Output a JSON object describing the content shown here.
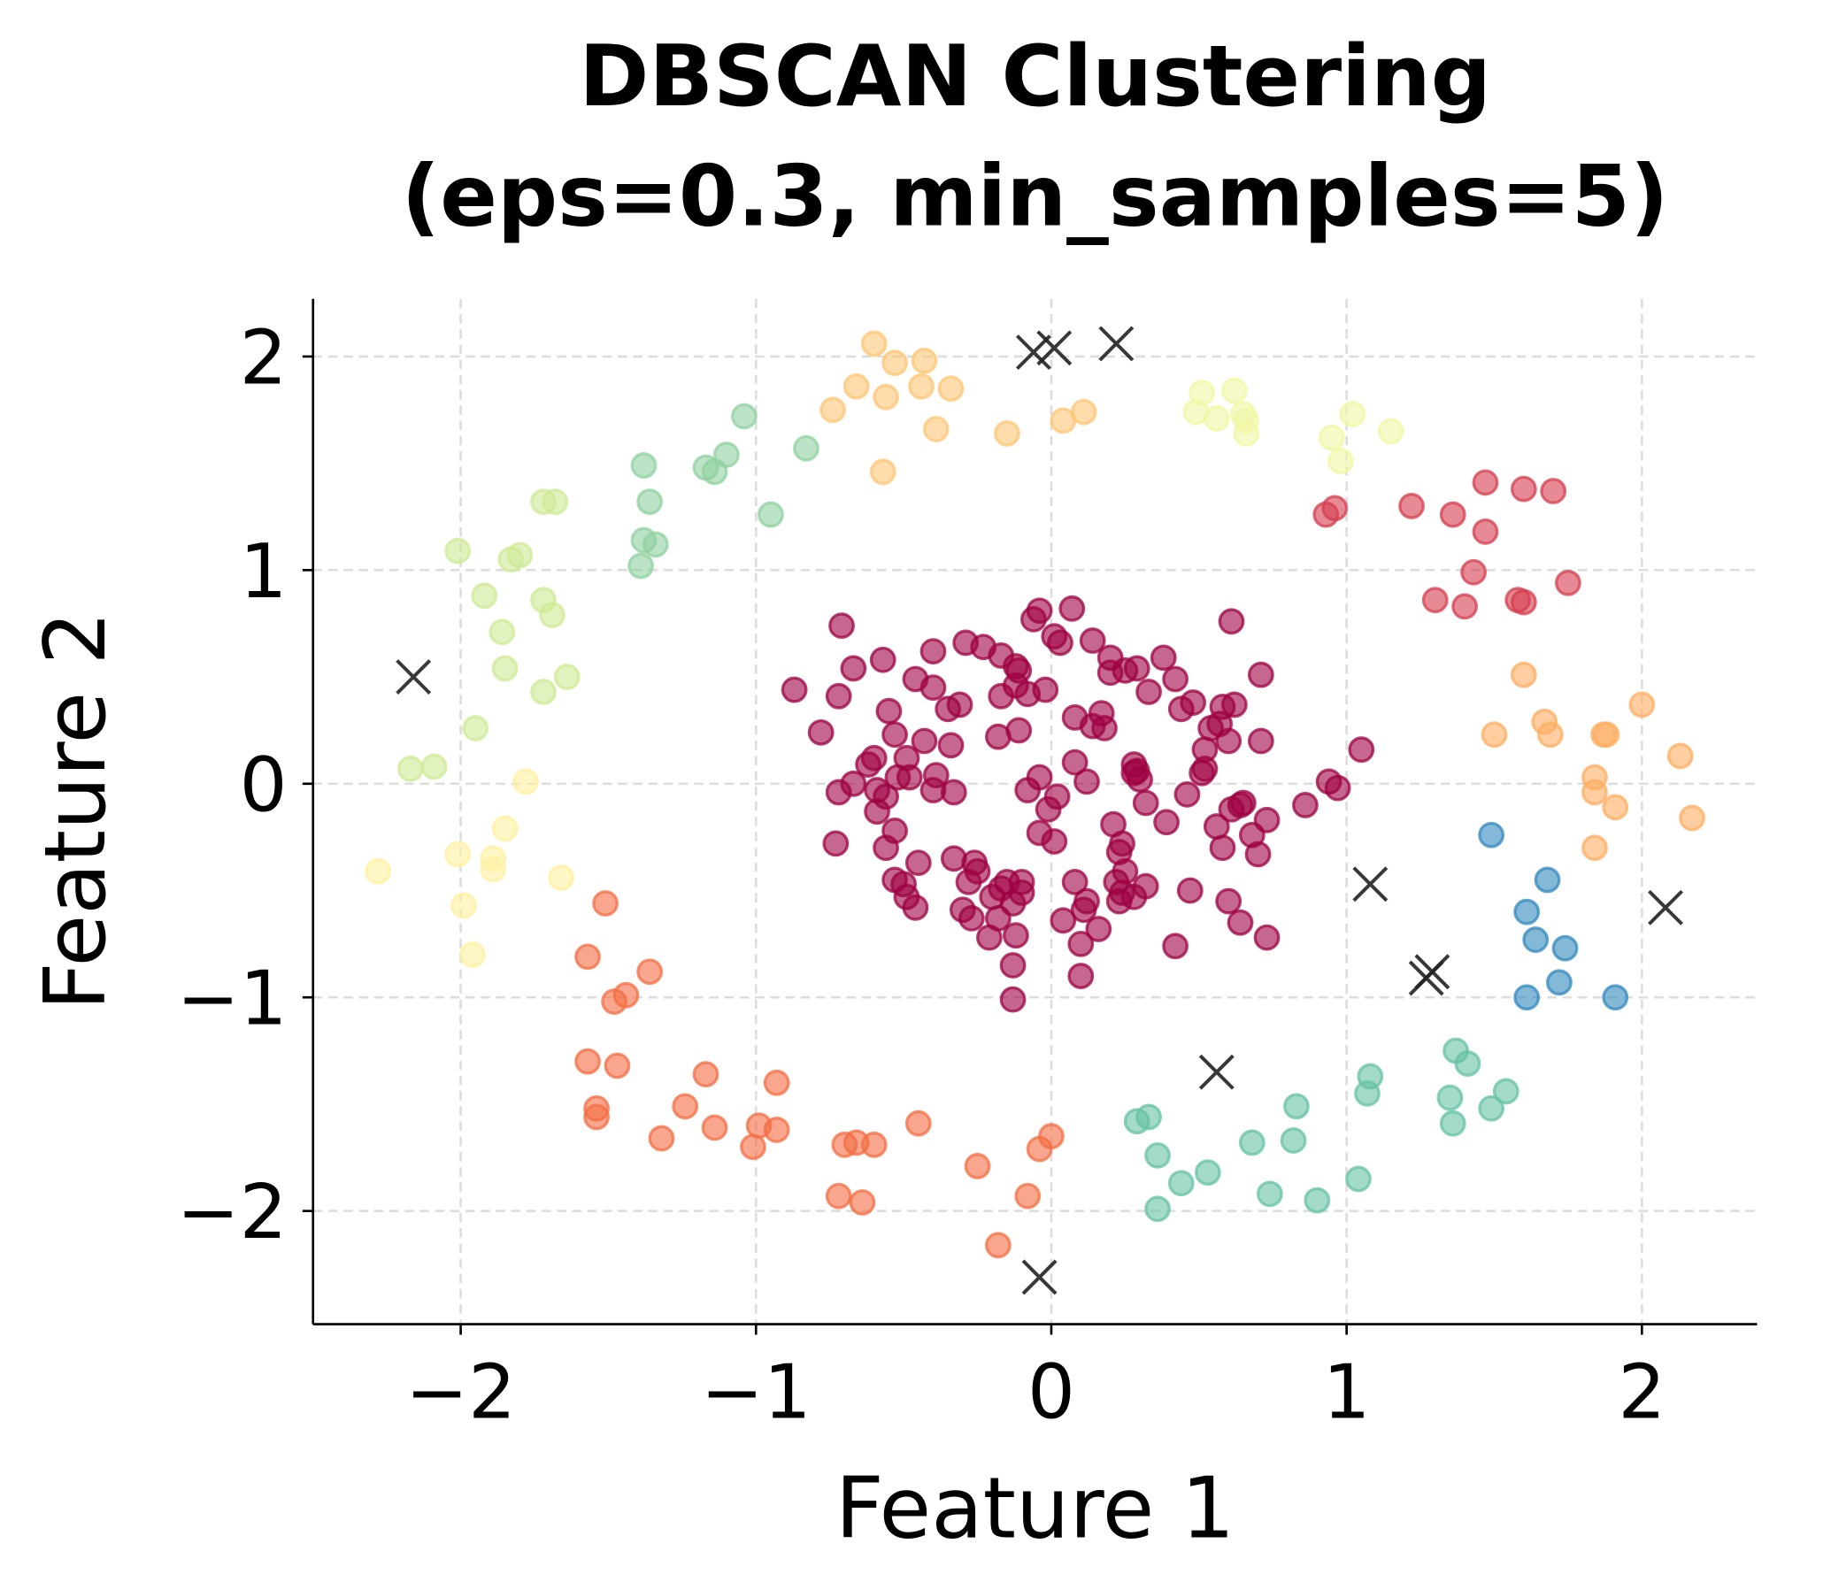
{
  "chart_data": {
    "type": "scatter",
    "title_line1": "DBSCAN Clustering",
    "title_line2": "(eps=0.3, min_samples=5)",
    "xlabel": "Feature 1",
    "ylabel": "Feature 2",
    "xlim": [
      -2.5,
      2.39
    ],
    "ylim": [
      -2.53,
      2.27
    ],
    "xticks": [
      -2,
      -1,
      0,
      1,
      2
    ],
    "yticks": [
      -2,
      -1,
      0,
      1,
      2
    ],
    "xtick_labels": [
      "−2",
      "−1",
      "0",
      "1",
      "2"
    ],
    "ytick_labels": [
      "−2",
      "−1",
      "0",
      "1",
      "2"
    ],
    "grid": true,
    "colormap": "Spectral",
    "marker_alpha": 0.6,
    "clusters": [
      {
        "color": "#9e0142",
        "points": [
          [
            -0.71,
            0.74
          ],
          [
            -0.67,
            0.54
          ],
          [
            -0.87,
            0.44
          ],
          [
            -0.72,
            0.41
          ],
          [
            -0.78,
            0.24
          ],
          [
            -0.57,
            0.58
          ],
          [
            -0.46,
            0.49
          ],
          [
            -0.4,
            0.62
          ],
          [
            -0.4,
            0.45
          ],
          [
            -0.55,
            0.34
          ],
          [
            -0.53,
            0.23
          ],
          [
            -0.43,
            0.2
          ],
          [
            -0.34,
            0.18
          ],
          [
            -0.35,
            0.35
          ],
          [
            -0.31,
            0.37
          ],
          [
            -0.29,
            0.66
          ],
          [
            -0.23,
            0.64
          ],
          [
            -0.17,
            0.6
          ],
          [
            -0.12,
            0.55
          ],
          [
            -0.11,
            0.53
          ],
          [
            -0.06,
            0.77
          ],
          [
            -0.04,
            0.81
          ],
          [
            0.01,
            0.69
          ],
          [
            0.03,
            0.66
          ],
          [
            0.07,
            0.82
          ],
          [
            0.14,
            0.67
          ],
          [
            0.2,
            0.59
          ],
          [
            0.2,
            0.52
          ],
          [
            0.25,
            0.53
          ],
          [
            0.29,
            0.54
          ],
          [
            0.33,
            0.43
          ],
          [
            0.38,
            0.59
          ],
          [
            0.42,
            0.49
          ],
          [
            0.44,
            0.35
          ],
          [
            0.48,
            0.38
          ],
          [
            0.61,
            0.76
          ],
          [
            0.58,
            0.36
          ],
          [
            0.62,
            0.37
          ],
          [
            0.71,
            0.51
          ],
          [
            0.71,
            0.2
          ],
          [
            0.54,
            0.26
          ],
          [
            0.52,
            0.16
          ],
          [
            0.52,
            0.07
          ],
          [
            0.6,
            0.2
          ],
          [
            0.57,
            0.28
          ],
          [
            -0.12,
            0.46
          ],
          [
            -0.08,
            0.42
          ],
          [
            -0.02,
            0.44
          ],
          [
            -0.17,
            0.41
          ],
          [
            -0.11,
            0.25
          ],
          [
            -0.18,
            0.22
          ],
          [
            0.08,
            0.31
          ],
          [
            0.14,
            0.27
          ],
          [
            0.17,
            0.33
          ],
          [
            0.18,
            0.26
          ],
          [
            -0.04,
            0.03
          ],
          [
            -0.08,
            -0.03
          ],
          [
            0.02,
            -0.06
          ],
          [
            -0.01,
            -0.12
          ],
          [
            -0.04,
            -0.23
          ],
          [
            0.01,
            -0.27
          ],
          [
            0.08,
            0.1
          ],
          [
            0.12,
            0.01
          ],
          [
            0.28,
            0.09
          ],
          [
            0.29,
            0.06
          ],
          [
            0.28,
            0.05
          ],
          [
            0.3,
            0.02
          ],
          [
            0.32,
            -0.09
          ],
          [
            0.21,
            -0.19
          ],
          [
            0.24,
            -0.28
          ],
          [
            0.39,
            -0.18
          ],
          [
            0.46,
            -0.05
          ],
          [
            0.51,
            0.05
          ],
          [
            0.56,
            -0.2
          ],
          [
            0.58,
            -0.3
          ],
          [
            0.61,
            -0.12
          ],
          [
            0.64,
            -0.1
          ],
          [
            0.65,
            -0.09
          ],
          [
            0.68,
            -0.24
          ],
          [
            0.7,
            -0.33
          ],
          [
            0.73,
            -0.17
          ],
          [
            0.86,
            -0.1
          ],
          [
            0.94,
            0.01
          ],
          [
            0.97,
            -0.02
          ],
          [
            1.05,
            0.16
          ],
          [
            -0.73,
            -0.28
          ],
          [
            -0.72,
            -0.04
          ],
          [
            -0.67,
            0.0
          ],
          [
            -0.62,
            0.09
          ],
          [
            -0.6,
            0.12
          ],
          [
            -0.59,
            -0.03
          ],
          [
            -0.59,
            -0.13
          ],
          [
            -0.56,
            -0.06
          ],
          [
            -0.56,
            -0.3
          ],
          [
            -0.53,
            -0.22
          ],
          [
            -0.52,
            0.03
          ],
          [
            -0.49,
            0.12
          ],
          [
            -0.48,
            0.03
          ],
          [
            -0.39,
            0.04
          ],
          [
            -0.4,
            -0.03
          ],
          [
            -0.33,
            -0.04
          ],
          [
            -0.45,
            -0.37
          ],
          [
            -0.53,
            -0.45
          ],
          [
            -0.5,
            -0.47
          ],
          [
            -0.49,
            -0.53
          ],
          [
            -0.46,
            -0.58
          ],
          [
            -0.33,
            -0.35
          ],
          [
            -0.26,
            -0.37
          ],
          [
            -0.28,
            -0.46
          ],
          [
            -0.25,
            -0.41
          ],
          [
            -0.3,
            -0.59
          ],
          [
            -0.27,
            -0.63
          ],
          [
            -0.21,
            -0.72
          ],
          [
            -0.2,
            -0.53
          ],
          [
            -0.17,
            -0.49
          ],
          [
            -0.15,
            -0.46
          ],
          [
            -0.13,
            -0.56
          ],
          [
            -0.1,
            -0.51
          ],
          [
            -0.12,
            -0.71
          ],
          [
            -0.1,
            -0.46
          ],
          [
            -0.13,
            -0.85
          ],
          [
            -0.13,
            -1.01
          ],
          [
            -0.18,
            -0.63
          ],
          [
            0.08,
            -0.46
          ],
          [
            0.04,
            -0.64
          ],
          [
            0.12,
            -0.55
          ],
          [
            0.11,
            -0.59
          ],
          [
            0.1,
            -0.75
          ],
          [
            0.1,
            -0.9
          ],
          [
            0.16,
            -0.68
          ],
          [
            0.23,
            -0.32
          ],
          [
            0.25,
            -0.41
          ],
          [
            0.24,
            -0.51
          ],
          [
            0.22,
            -0.46
          ],
          [
            0.23,
            -0.55
          ],
          [
            0.28,
            -0.53
          ],
          [
            0.32,
            -0.48
          ],
          [
            0.42,
            -0.76
          ],
          [
            0.47,
            -0.5
          ],
          [
            0.6,
            -0.55
          ],
          [
            0.64,
            -0.65
          ],
          [
            0.73,
            -0.72
          ]
        ]
      },
      {
        "color": "#d53e4f",
        "points": [
          [
            0.93,
            1.26
          ],
          [
            0.96,
            1.29
          ],
          [
            1.22,
            1.3
          ],
          [
            1.36,
            1.26
          ],
          [
            1.47,
            1.41
          ],
          [
            1.6,
            1.38
          ],
          [
            1.7,
            1.37
          ],
          [
            1.47,
            1.18
          ],
          [
            1.43,
            0.99
          ],
          [
            1.3,
            0.86
          ],
          [
            1.4,
            0.83
          ],
          [
            1.58,
            0.86
          ],
          [
            1.6,
            0.85
          ],
          [
            1.75,
            0.94
          ]
        ]
      },
      {
        "color": "#f46d43",
        "points": [
          [
            -1.51,
            -0.56
          ],
          [
            -1.57,
            -0.81
          ],
          [
            -1.36,
            -0.88
          ],
          [
            -1.44,
            -0.99
          ],
          [
            -1.48,
            -1.02
          ],
          [
            -1.57,
            -1.3
          ],
          [
            -1.47,
            -1.32
          ],
          [
            -1.54,
            -1.52
          ],
          [
            -1.54,
            -1.56
          ],
          [
            -1.24,
            -1.51
          ],
          [
            -1.17,
            -1.36
          ],
          [
            -1.14,
            -1.61
          ],
          [
            -1.32,
            -1.66
          ],
          [
            -0.93,
            -1.4
          ],
          [
            -0.93,
            -1.62
          ],
          [
            -0.99,
            -1.6
          ],
          [
            -1.01,
            -1.7
          ],
          [
            -0.7,
            -1.69
          ],
          [
            -0.66,
            -1.68
          ],
          [
            -0.6,
            -1.69
          ],
          [
            -0.72,
            -1.93
          ],
          [
            -0.64,
            -1.96
          ],
          [
            -0.45,
            -1.59
          ],
          [
            -0.25,
            -1.79
          ],
          [
            0.0,
            -1.65
          ],
          [
            -0.04,
            -1.71
          ],
          [
            -0.08,
            -1.93
          ],
          [
            -0.18,
            -2.16
          ]
        ]
      },
      {
        "color": "#fdae61",
        "points": [
          [
            1.6,
            0.51
          ],
          [
            1.67,
            0.29
          ],
          [
            1.69,
            0.23
          ],
          [
            1.5,
            0.23
          ],
          [
            1.87,
            0.23
          ],
          [
            1.88,
            0.23
          ],
          [
            2.0,
            0.37
          ],
          [
            2.13,
            0.13
          ],
          [
            2.17,
            -0.16
          ],
          [
            1.84,
            0.03
          ],
          [
            1.84,
            -0.04
          ],
          [
            1.91,
            -0.11
          ],
          [
            1.84,
            -0.3
          ]
        ]
      },
      {
        "color": "#fdc574",
        "points": [
          [
            -0.6,
            2.06
          ],
          [
            -0.53,
            1.97
          ],
          [
            -0.43,
            1.98
          ],
          [
            -0.66,
            1.86
          ],
          [
            -0.56,
            1.81
          ],
          [
            -0.44,
            1.86
          ],
          [
            -0.34,
            1.85
          ],
          [
            -0.74,
            1.75
          ],
          [
            -0.39,
            1.66
          ],
          [
            -0.57,
            1.46
          ],
          [
            -0.15,
            1.64
          ],
          [
            0.04,
            1.7
          ],
          [
            0.11,
            1.74
          ]
        ]
      },
      {
        "color": "#f0f7a4",
        "points": [
          [
            0.51,
            1.83
          ],
          [
            0.62,
            1.84
          ],
          [
            0.49,
            1.74
          ],
          [
            0.56,
            1.71
          ],
          [
            0.65,
            1.73
          ],
          [
            0.66,
            1.7
          ],
          [
            0.66,
            1.64
          ],
          [
            1.02,
            1.73
          ],
          [
            1.15,
            1.65
          ],
          [
            0.95,
            1.62
          ],
          [
            0.98,
            1.51
          ]
        ]
      },
      {
        "color": "#fff0a0",
        "points": [
          [
            -1.78,
            0.01
          ],
          [
            -2.28,
            -0.41
          ],
          [
            -2.01,
            -0.33
          ],
          [
            -1.89,
            -0.35
          ],
          [
            -1.89,
            -0.4
          ],
          [
            -1.85,
            -0.21
          ],
          [
            -1.66,
            -0.44
          ],
          [
            -1.99,
            -0.57
          ],
          [
            -1.96,
            -0.8
          ]
        ]
      },
      {
        "color": "#cfea95",
        "points": [
          [
            -2.01,
            1.09
          ],
          [
            -1.72,
            1.32
          ],
          [
            -1.68,
            1.32
          ],
          [
            -1.83,
            1.05
          ],
          [
            -1.8,
            1.07
          ],
          [
            -1.92,
            0.88
          ],
          [
            -1.86,
            0.71
          ],
          [
            -1.72,
            0.86
          ],
          [
            -1.69,
            0.79
          ],
          [
            -1.85,
            0.54
          ],
          [
            -1.72,
            0.43
          ],
          [
            -1.64,
            0.5
          ],
          [
            -1.95,
            0.26
          ],
          [
            -2.17,
            0.07
          ],
          [
            -2.09,
            0.08
          ]
        ]
      },
      {
        "color": "#8fd1a0",
        "points": [
          [
            -1.04,
            1.72
          ],
          [
            -1.1,
            1.54
          ],
          [
            -1.17,
            1.48
          ],
          [
            -1.14,
            1.46
          ],
          [
            -0.83,
            1.57
          ],
          [
            -0.95,
            1.26
          ],
          [
            -1.38,
            1.49
          ],
          [
            -1.36,
            1.32
          ],
          [
            -1.38,
            1.14
          ],
          [
            -1.34,
            1.12
          ],
          [
            -1.39,
            1.02
          ]
        ]
      },
      {
        "color": "#66c2a5",
        "points": [
          [
            1.37,
            -1.25
          ],
          [
            1.41,
            -1.31
          ],
          [
            1.54,
            -1.44
          ],
          [
            1.49,
            -1.52
          ],
          [
            1.35,
            -1.47
          ],
          [
            1.36,
            -1.59
          ],
          [
            1.08,
            -1.37
          ],
          [
            1.07,
            -1.45
          ],
          [
            1.04,
            -1.85
          ],
          [
            0.83,
            -1.51
          ],
          [
            0.82,
            -1.67
          ],
          [
            0.68,
            -1.68
          ],
          [
            0.74,
            -1.92
          ],
          [
            0.9,
            -1.95
          ],
          [
            0.53,
            -1.82
          ],
          [
            0.44,
            -1.87
          ],
          [
            0.36,
            -1.74
          ],
          [
            0.33,
            -1.56
          ],
          [
            0.29,
            -1.58
          ],
          [
            0.36,
            -1.99
          ]
        ]
      },
      {
        "color": "#3288bd",
        "points": [
          [
            1.49,
            -0.24
          ],
          [
            1.68,
            -0.45
          ],
          [
            1.61,
            -0.6
          ],
          [
            1.64,
            -0.73
          ],
          [
            1.74,
            -0.77
          ],
          [
            1.72,
            -0.93
          ],
          [
            1.61,
            -1.0
          ],
          [
            1.91,
            -1.0
          ]
        ]
      }
    ],
    "noise": {
      "color": "#000000",
      "marker": "x",
      "points": [
        [
          -0.06,
          2.02
        ],
        [
          0.01,
          2.04
        ],
        [
          0.22,
          2.06
        ],
        [
          -2.16,
          0.5
        ],
        [
          1.08,
          -0.47
        ],
        [
          2.08,
          -0.58
        ],
        [
          1.27,
          -0.91
        ],
        [
          1.29,
          -0.88
        ],
        [
          0.56,
          -1.35
        ],
        [
          -0.04,
          -2.31
        ]
      ]
    }
  }
}
